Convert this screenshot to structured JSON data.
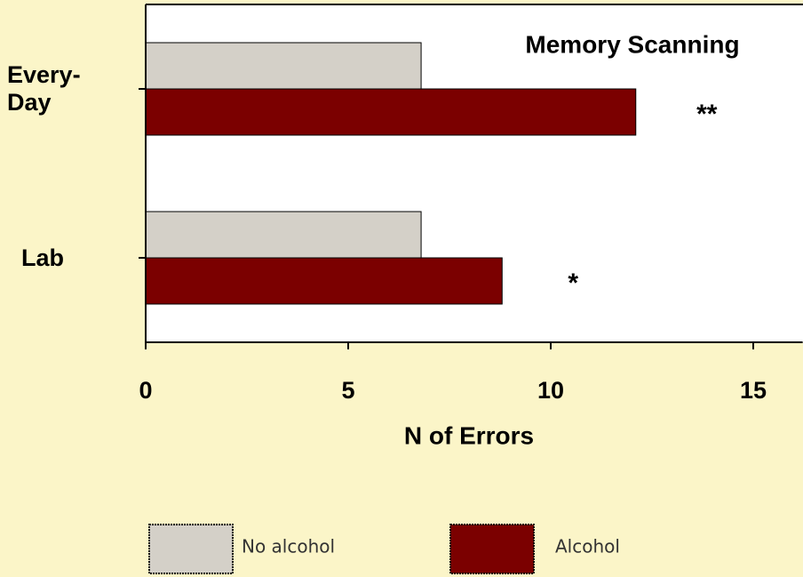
{
  "chart_data": {
    "type": "barh",
    "title": "Memory Scanning",
    "categories": [
      "Every-Day",
      "Lab"
    ],
    "series": [
      {
        "name": "No alcohol",
        "color": "#d4d0c8",
        "values": [
          6.8,
          6.8
        ]
      },
      {
        "name": "Alcohol",
        "color": "#7b0000",
        "values": [
          12.1,
          8.8
        ]
      }
    ],
    "annotations": [
      "**",
      "*"
    ],
    "xlabel": "N of Errors",
    "xlim": [
      0,
      16
    ],
    "xticks": [
      0,
      5,
      10,
      15
    ],
    "grid": false
  }
}
